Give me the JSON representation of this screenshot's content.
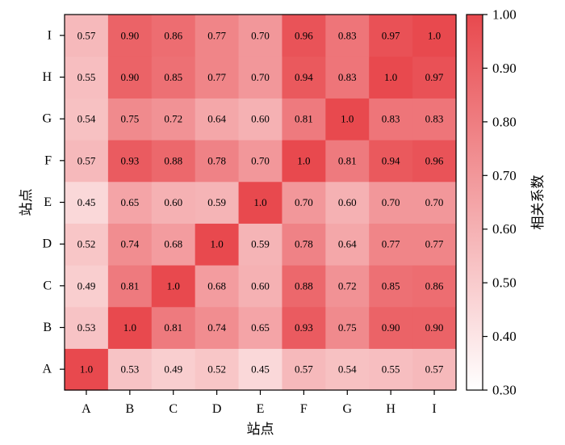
{
  "chart_data": {
    "type": "heatmap",
    "x_categories": [
      "A",
      "B",
      "C",
      "D",
      "E",
      "F",
      "G",
      "H",
      "I"
    ],
    "y_categories": [
      "A",
      "B",
      "C",
      "D",
      "E",
      "F",
      "G",
      "H",
      "I"
    ],
    "cell_labels": [
      [
        "1.0",
        "0.53",
        "0.49",
        "0.52",
        "0.45",
        "0.57",
        "0.54",
        "0.55",
        "0.57"
      ],
      [
        "0.53",
        "1.0",
        "0.81",
        "0.74",
        "0.65",
        "0.93",
        "0.75",
        "0.90",
        "0.90"
      ],
      [
        "0.49",
        "0.81",
        "1.0",
        "0.68",
        "0.60",
        "0.88",
        "0.72",
        "0.85",
        "0.86"
      ],
      [
        "0.52",
        "0.74",
        "0.68",
        "1.0",
        "0.59",
        "0.78",
        "0.64",
        "0.77",
        "0.77"
      ],
      [
        "0.45",
        "0.65",
        "0.60",
        "0.59",
        "1.0",
        "0.70",
        "0.60",
        "0.70",
        "0.70"
      ],
      [
        "0.57",
        "0.93",
        "0.88",
        "0.78",
        "0.70",
        "1.0",
        "0.81",
        "0.94",
        "0.96"
      ],
      [
        "0.54",
        "0.75",
        "0.72",
        "0.64",
        "0.60",
        "0.81",
        "1.0",
        "0.83",
        "0.83"
      ],
      [
        "0.55",
        "0.90",
        "0.85",
        "0.77",
        "0.70",
        "0.94",
        "0.83",
        "1.0",
        "0.97"
      ],
      [
        "0.57",
        "0.90",
        "0.86",
        "0.77",
        "0.70",
        "0.96",
        "0.83",
        "0.97",
        "1.0"
      ]
    ],
    "xlabel": "站点",
    "ylabel": "站点",
    "colorbar": {
      "label": "相关系数",
      "range": [
        0.3,
        1.0
      ],
      "ticks": [
        "0.30",
        "0.40",
        "0.50",
        "0.60",
        "0.70",
        "0.80",
        "0.90",
        "1.00"
      ],
      "color_low": "#ffffff",
      "color_high": "#e8494e"
    }
  }
}
